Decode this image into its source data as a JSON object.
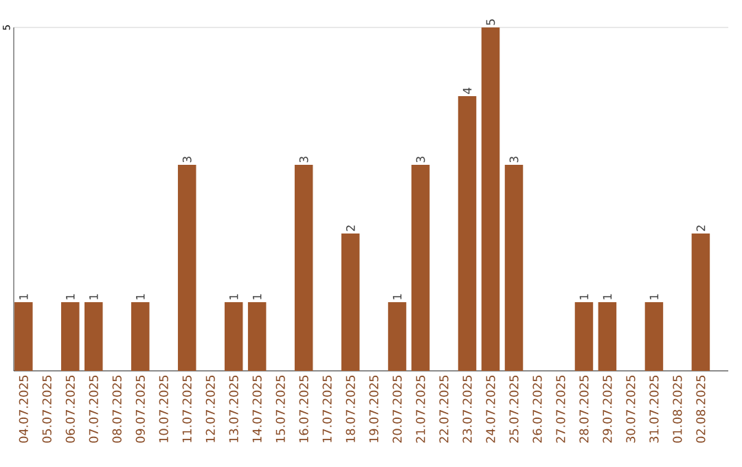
{
  "chart_data": {
    "type": "bar",
    "categories": [
      "04.07.2025",
      "05.07.2025",
      "06.07.2025",
      "07.07.2025",
      "08.07.2025",
      "09.07.2025",
      "10.07.2025",
      "11.07.2025",
      "12.07.2025",
      "13.07.2025",
      "14.07.2025",
      "15.07.2025",
      "16.07.2025",
      "17.07.2025",
      "18.07.2025",
      "19.07.2025",
      "20.07.2025",
      "21.07.2025",
      "22.07.2025",
      "23.07.2025",
      "24.07.2025",
      "25.07.2025",
      "26.07.2025",
      "27.07.2025",
      "28.07.2025",
      "29.07.2025",
      "30.07.2025",
      "31.07.2025",
      "01.08.2025",
      "02.08.2025"
    ],
    "values": [
      1,
      0,
      1,
      1,
      0,
      1,
      0,
      3,
      0,
      1,
      1,
      0,
      3,
      0,
      2,
      0,
      1,
      3,
      0,
      4,
      5,
      3,
      0,
      0,
      1,
      1,
      0,
      1,
      0,
      2
    ],
    "value_labels": [
      "1",
      null,
      "1",
      "1",
      null,
      "1",
      null,
      "3",
      null,
      "1",
      "1",
      null,
      "3",
      null,
      "2",
      null,
      "1",
      "3",
      null,
      "4",
      "5",
      "3",
      null,
      null,
      "1",
      "1",
      null,
      "1",
      null,
      "2"
    ],
    "color": "#a0572b",
    "ylim": [
      0,
      5
    ],
    "yticks": [
      {
        "value": 0,
        "label": null
      },
      5
    ],
    "grid": "y"
  }
}
